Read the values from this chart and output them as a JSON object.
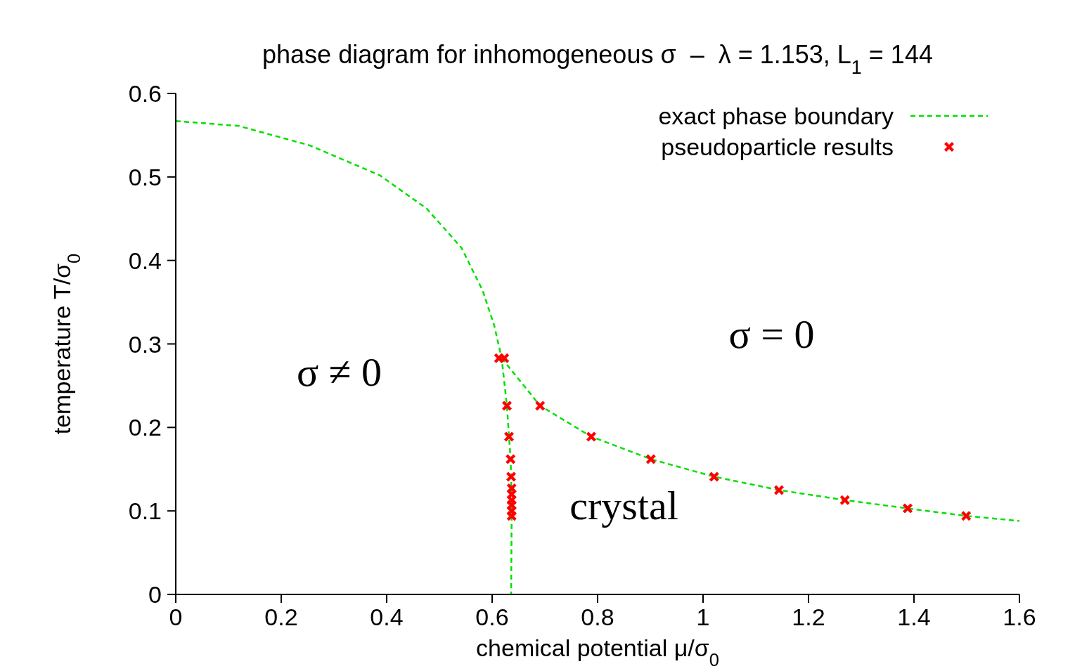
{
  "chart_data": {
    "type": "line",
    "title": "phase diagram for inhomogeneous σ  –  λ = 1.153, L$_{1}$ = 144",
    "xlabel": "chemical potential μ/σ$_{0}$",
    "ylabel": "temperature T/σ$_{0}$",
    "series": [
      {
        "name": "exact phase boundary",
        "color": "#00e000",
        "line_style": "dashed",
        "marker": "none",
        "x": [
          0,
          0.12,
          0.253,
          0.387,
          0.476,
          0.542,
          0.582,
          0.604,
          0.618,
          0.628,
          0.632,
          0.635,
          0.636,
          0.637,
          0.636,
          null,
          0.618,
          0.691,
          0.788,
          0.901,
          1.021,
          1.144,
          1.269,
          1.388,
          1.499,
          1.6
        ],
        "values": [
          0.567,
          0.561,
          0.538,
          0.502,
          0.462,
          0.415,
          0.364,
          0.322,
          0.283,
          0.226,
          0.189,
          0.162,
          0.141,
          0.094,
          0,
          null,
          0.283,
          0.226,
          0.189,
          0.162,
          0.141,
          0.125,
          0.113,
          0.103,
          0.094,
          0.088
        ]
      },
      {
        "name": "pseudoparticle results",
        "type": "scatter",
        "color": "#ff0000",
        "marker": "cross",
        "x": [
          0.613,
          0.623,
          0.628,
          0.632,
          0.635,
          0.636,
          0.637,
          0.637,
          0.637,
          0.637,
          0.637,
          0.637,
          0.691,
          0.788,
          0.901,
          1.021,
          1.144,
          1.269,
          1.388,
          1.499
        ],
        "values": [
          0.283,
          0.283,
          0.226,
          0.189,
          0.162,
          0.141,
          0.127,
          0.12,
          0.113,
          0.107,
          0.1,
          0.094,
          0.226,
          0.189,
          0.162,
          0.141,
          0.125,
          0.113,
          0.103,
          0.094
        ]
      }
    ],
    "xlim": [
      0,
      1.6
    ],
    "xticks": [
      0,
      0.2,
      0.4,
      0.6,
      0.8,
      1,
      1.2,
      1.4,
      1.6
    ],
    "ylim": [
      0,
      0.6
    ],
    "yticks": [
      0,
      0.1,
      0.2,
      0.3,
      0.4,
      0.5,
      0.6
    ],
    "grid": false,
    "legend": "top right",
    "annotations": [
      "σ ≠ 0",
      "σ = 0",
      "crystal"
    ]
  }
}
